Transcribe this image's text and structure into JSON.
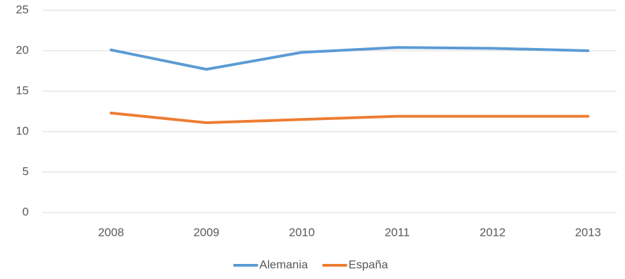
{
  "chart_data": {
    "type": "line",
    "categories": [
      "2008",
      "2009",
      "2010",
      "2011",
      "2012",
      "2013"
    ],
    "series": [
      {
        "name": "Alemania",
        "color": "#5b9bd5",
        "values": [
          20.1,
          17.7,
          19.8,
          20.4,
          20.3,
          20.0
        ]
      },
      {
        "name": "España",
        "color": "#ed7d31",
        "values": [
          12.3,
          11.1,
          11.5,
          11.9,
          11.9,
          11.9
        ]
      }
    ],
    "ylim": [
      0,
      25
    ],
    "yticks": [
      0,
      5,
      10,
      15,
      20,
      25
    ],
    "grid": true,
    "legend": "bottom"
  }
}
